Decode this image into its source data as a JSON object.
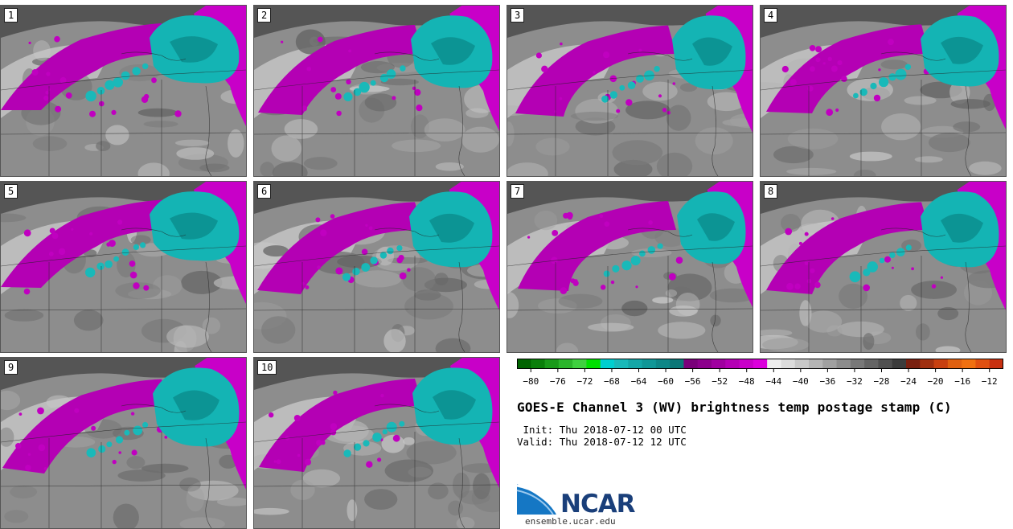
{
  "title": "GOES-E Channel 3 (WV) brightness temp postage stamp (C)",
  "init_label": "Init:",
  "init_time": "Thu 2018-07-12 00 UTC",
  "valid_label": "Valid:",
  "valid_time": "Thu 2018-07-12 12 UTC",
  "logo_text": "NCAR",
  "logo_url": "ensemble.ucar.edu",
  "panels": [
    {
      "number": "1"
    },
    {
      "number": "2"
    },
    {
      "number": "3"
    },
    {
      "number": "4"
    },
    {
      "number": "5"
    },
    {
      "number": "6"
    },
    {
      "number": "7"
    },
    {
      "number": "8"
    },
    {
      "number": "9"
    },
    {
      "number": "10"
    }
  ],
  "colorbar": {
    "tick_labels": [
      "−80",
      "−76",
      "−72",
      "−68",
      "−64",
      "−60",
      "−56",
      "−52",
      "−48",
      "−44",
      "−40",
      "−36",
      "−32",
      "−28",
      "−24",
      "−20",
      "−16",
      "−12"
    ],
    "colors": [
      "#006400",
      "#0a7f0a",
      "#199a19",
      "#2bb52b",
      "#3fd03f",
      "#00e000",
      "#00cfcf",
      "#19b9b9",
      "#14a7a7",
      "#109797",
      "#0d8787",
      "#0a7777",
      "#7a007a",
      "#8c008c",
      "#a000a0",
      "#b400b4",
      "#c800c8",
      "#dc00dc",
      "#eeeeee",
      "#dcdcdc",
      "#c8c8c8",
      "#b4b4b4",
      "#a0a0a0",
      "#8c8c8c",
      "#787878",
      "#646464",
      "#505050",
      "#3c3c3c",
      "#7a2010",
      "#a03010",
      "#c84010",
      "#e06010",
      "#f07010",
      "#e05010",
      "#c83010"
    ]
  }
}
